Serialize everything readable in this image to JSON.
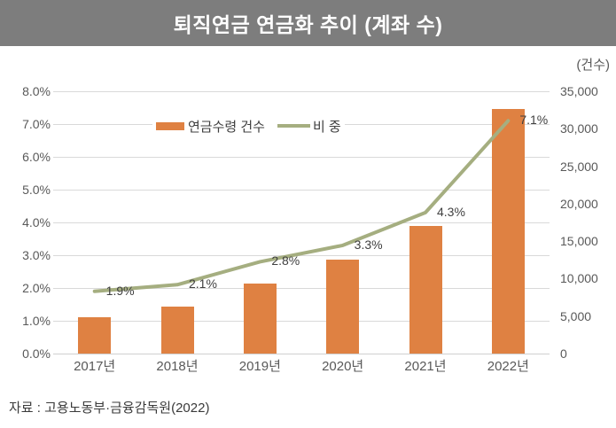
{
  "header": {
    "title": "퇴직연금 연금화 추이 (계좌 수)",
    "bg_color": "#7d7d7d"
  },
  "source": "자료 : 고용노동부·금융감독원(2022)",
  "chart_data": {
    "type": "bar",
    "subtype": "dual-axis bar + line",
    "title": "퇴직연금 연금화 추이 (계좌 수)",
    "categories": [
      "2017년",
      "2018년",
      "2019년",
      "2020년",
      "2021년",
      "2022년"
    ],
    "series": [
      {
        "name": "연금수령 건수",
        "type": "bar",
        "axis": "right",
        "color": "#df8142",
        "values": [
          4800,
          6300,
          9400,
          12500,
          17000,
          32600
        ]
      },
      {
        "name": "비 중",
        "type": "line",
        "axis": "left",
        "color": "#a5ae80",
        "values": [
          1.9,
          2.1,
          2.8,
          3.3,
          4.3,
          7.1
        ],
        "point_labels": [
          "1.9%",
          "2.1%",
          "2.8%",
          "3.3%",
          "4.3%",
          "7.1%"
        ]
      }
    ],
    "left_axis": {
      "min": 0,
      "max": 8,
      "ticks": [
        "8.0%",
        "7.0%",
        "6.0%",
        "5.0%",
        "4.0%",
        "3.0%",
        "2.0%",
        "1.0%",
        "0.0%"
      ]
    },
    "right_axis": {
      "min": 0,
      "max": 35000,
      "unit": "(건수)",
      "ticks": [
        "35,000",
        "30,000",
        "25,000",
        "20,000",
        "15,000",
        "10,000",
        "5,000",
        "0"
      ]
    },
    "grid": true,
    "legend_position": "top-center-inside",
    "colors": {
      "gridline": "#d9d9d9",
      "axis_text": "#595959",
      "data_label_text": "#404040"
    }
  }
}
